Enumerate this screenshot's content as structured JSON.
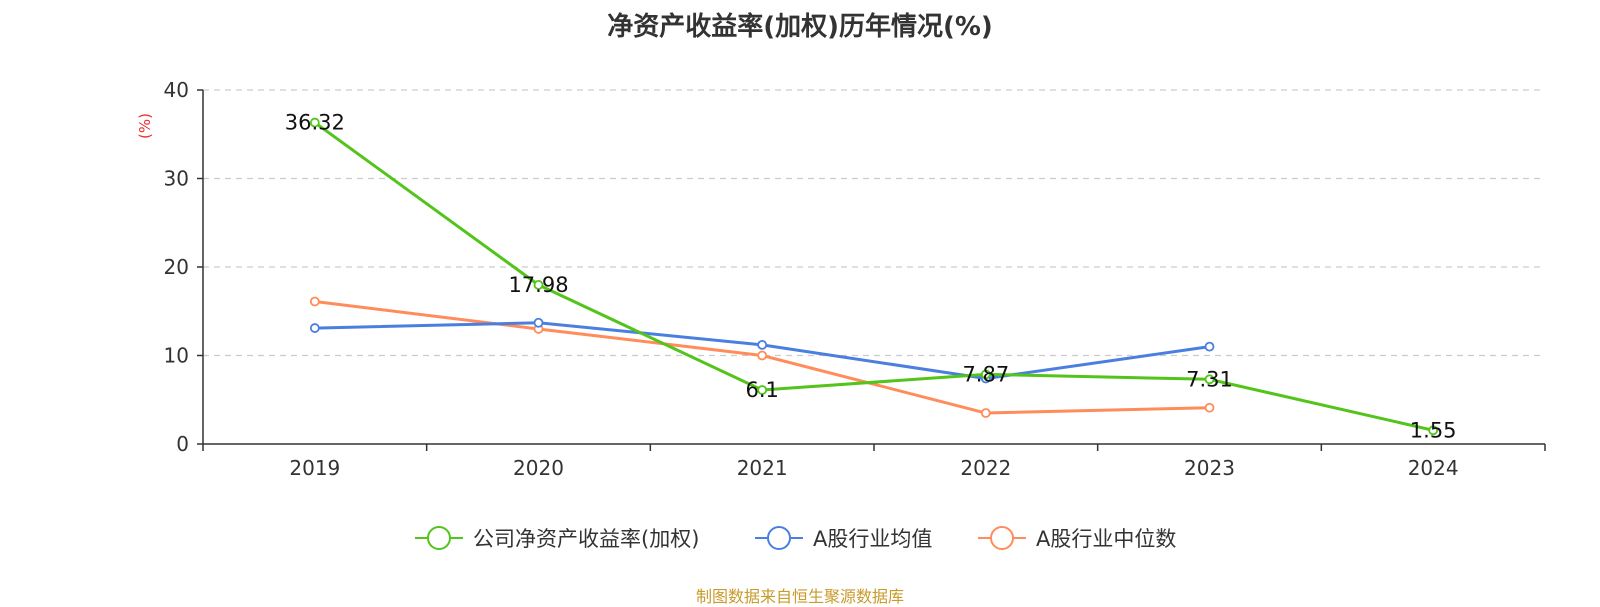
{
  "title": "净资产收益率(加权)历年情况(%)",
  "footer": "制图数据来自恒生聚源数据库",
  "chart_data": {
    "type": "line",
    "title": "净资产收益率(加权)历年情况(%)",
    "xlabel": "",
    "ylabel": "(%)",
    "ylim": [
      0,
      40
    ],
    "yticks": [
      "0",
      "10",
      "20",
      "30",
      "40"
    ],
    "categories": [
      "2019",
      "2020",
      "2021",
      "2022",
      "2023",
      "2024"
    ],
    "grid": true,
    "legend_position": "bottom",
    "series": [
      {
        "name": "公司净资产收益率(加权)",
        "color": "#52c41a",
        "values": [
          36.32,
          17.98,
          6.1,
          7.87,
          7.31,
          1.55
        ],
        "labels": [
          "36.32",
          "17.98",
          "6.1",
          "7.87",
          "7.31",
          "1.55"
        ]
      },
      {
        "name": "A股行业均值",
        "color": "#4a7fe0",
        "values": [
          13.1,
          13.7,
          11.2,
          7.4,
          11.0,
          null
        ]
      },
      {
        "name": "A股行业中位数",
        "color": "#ff8c5a",
        "values": [
          16.1,
          13.0,
          10.0,
          3.5,
          4.1,
          null
        ]
      }
    ],
    "colors": {
      "ylabel": "#e8312f",
      "axis": "#333333",
      "grid": "#cccccc"
    }
  }
}
